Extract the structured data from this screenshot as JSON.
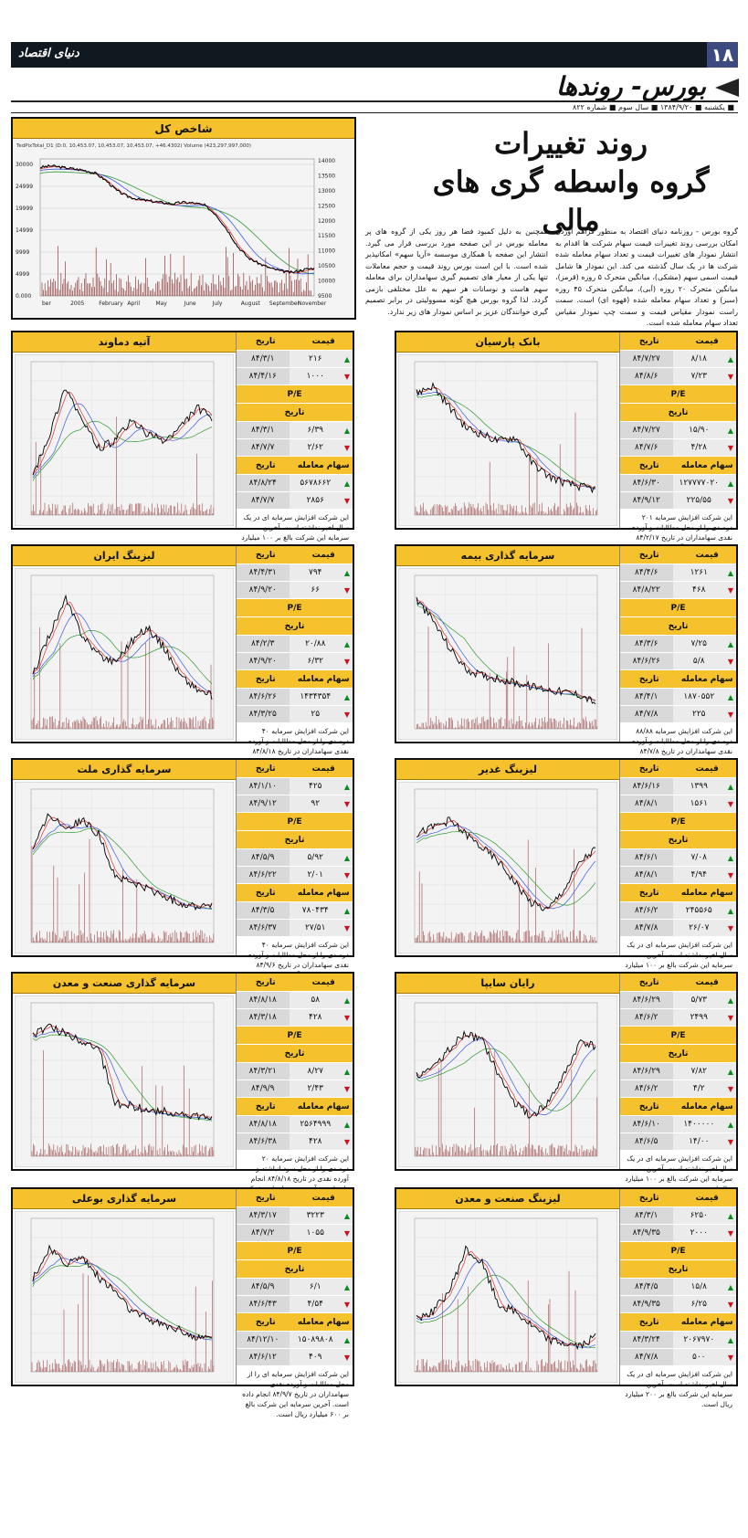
{
  "masthead": {
    "bar_text": "دنیای اقتصاد",
    "page_number": "۱۸",
    "section": "بورس- روندها",
    "dateline": "■ یکشنبه ■ ۱۳۸۴/۹/۲۰ ■ سال سوم ■ شماره ۸۲۲"
  },
  "headline": {
    "line1": "روند تغییرات",
    "line2": "گروه واسطه گری های مالی"
  },
  "intro": {
    "col1": "گروه بورس - روزنامه دنیای اقتصاد به منظور فراهم آوردن امکان بررسی روند تغییرات قیمت سهام شرکت ها اقدام به انتشار نمودار های تغییرات قیمت و تعداد سهام معامله شده شرکت ها در یک سال گذشته می کند. این نمودار ها شامل قیمت اسمی سهم (مشکی)، میانگین متحرک ۵ روزه (قرمز)، میانگین متحرک ۲۰ روزه (آبی)، میانگین متحرک ۴۵ روزه (سبز) و تعداد سهام معامله شده (قهوه ای) است. سمت راست نمودار مقیاس قیمت و سمت چپ نمودار مقیاس تعداد سهام معامله شده است.",
    "col2": "همچنین به دلیل کمبود فضا هر روز یکی از گروه های پر معامله بورس در این صفحه مورد بررسی قرار می گیرد. انتشار این صفحه با همکاری موسسه «آریا سهم» امکانپذیر شده است. با این است بورس روند قیمت و حجم معاملات تنها یکی از معیار های تصمیم گیری سهامداران برای معامله سهم هاست و نوسانات هر سهم به علل مختلفی بازمی گردد. لذا گروه بورس هیچ گونه مسوولیتی در برابر تصمیم گیری خوانندگان عزیز بر اساس نمودار های زیر ندارد."
  },
  "index_chart": {
    "title": "شاخص کل",
    "legend": "TedPixTotal_D1 (D:0, 10,453.07, 10,453.07, 10,453.07, +46.4302) Volume (423,297,997,000)",
    "x_labels": [
      "ber",
      "2005",
      "February",
      "April",
      "May",
      "June",
      "July",
      "August",
      "September",
      "November"
    ],
    "y_left": [
      "30000",
      "24999",
      "19999",
      "14999",
      "9999",
      "4999",
      "0.000"
    ],
    "y_right": [
      "14000",
      "13500",
      "13000",
      "12500",
      "12000",
      "11500",
      "11000",
      "10500",
      "10000",
      "9500"
    ]
  },
  "labels": {
    "price": "قیمت",
    "date": "تاریخ",
    "pe": "P/E",
    "volume": "سهام معامله شده"
  },
  "panels": [
    {
      "title": "بانک پارسیان",
      "rows": [
        [
          "۸/۱۸",
          "۸۴/۷/۲۷",
          "up"
        ],
        [
          "۷/۲۳",
          "۸۴/۸/۶",
          "down"
        ],
        [
          "۱۵/۹۰",
          "۸۴/۷/۲۷",
          "up"
        ],
        [
          "۴/۲۸",
          "۸۴/۷/۶",
          "down"
        ],
        [
          "۱۲۷۷۷۷۰۲۰",
          "۸۴/۶/۳۰",
          "up"
        ],
        [
          "۲۲۵/۵۵",
          "۸۴/۹/۱۲",
          "down"
        ]
      ],
      "note": "این شرکت افزایش سرمایه ۲۰۱ درصدی را از محل مطالبات و آورده نقدی سهامداران در تاریخ ۸۴/۲/۱۷ انجام داده است. آخرین سرمایه این شرکت بالغ بر ۵۰۰۰ میلیارد ریال است."
    },
    {
      "title": "آتیه دماوند",
      "rows": [
        [
          "۲۱۶",
          "۸۴/۳/۱",
          "up"
        ],
        [
          "۱۰۰۰",
          "۸۴/۴/۱۶",
          "down"
        ],
        [
          "۶/۳۹",
          "۸۴/۳/۱",
          "up"
        ],
        [
          "۲/۶۲",
          "۸۴/۷/۷",
          "down"
        ],
        [
          "۵۶۷۸۶۶۲",
          "۸۴/۸/۲۴",
          "up"
        ],
        [
          "۲۸۵۶",
          "۸۴/۷/۷",
          "down"
        ]
      ],
      "note": "این شرکت افزایش سرمایه ای در یک سال اخیر نداشته است. آخرین سرمایه این شرکت بالغ بر ۱۰۰ میلیارد ریال است."
    },
    {
      "title": "سرمایه گذاری بیمه",
      "rows": [
        [
          "۱۲۶۱",
          "۸۴/۴/۶",
          "up"
        ],
        [
          "۴۶۸",
          "۸۴/۸/۲۲",
          "down"
        ],
        [
          "۷/۲۵",
          "۸۴/۳/۶",
          "up"
        ],
        [
          "۵/۸",
          "۸۴/۶/۲۶",
          "down"
        ],
        [
          "۱۸۷۰۵۵۲",
          "۸۴/۴/۱",
          "up"
        ],
        [
          "۲۲۵",
          "۸۴/۷/۸",
          "down"
        ]
      ],
      "note": "این شرکت افزایش سرمایه ۸۸/۸۸ درصدی را از محل مطالبات و آورده نقدی سهامداران در تاریخ ۸۴/۷/۸ انجام داده است. آخرین سرمایه این شرکت بالغ بر ۱۵۰ میلیارد ریال است."
    },
    {
      "title": "لیزینگ ایران",
      "rows": [
        [
          "۷۹۴",
          "۸۴/۴/۳۱",
          "up"
        ],
        [
          "۶۶",
          "۸۴/۹/۲۰",
          "down"
        ],
        [
          "۲۰/۸۸",
          "۸۴/۲/۳",
          "up"
        ],
        [
          "۶/۳۲",
          "۸۴/۹/۲۰",
          "down"
        ],
        [
          "۱۴۳۴۳۵۴",
          "۸۴/۶/۲۶",
          "up"
        ],
        [
          "۲۵",
          "۸۴/۳/۲۵",
          "down"
        ]
      ],
      "note": "این شرکت افزایش سرمایه ۴۰ درصدی را از محل مطالبات و آورده نقدی سهامداران در تاریخ ۸۴/۸/۱۸ انجام داده است. آخرین سرمایه این شرکت بالغ بر ۵۶۰ میلیارد ریال است."
    },
    {
      "title": "لیزینگ غدیر",
      "rows": [
        [
          "۱۳۹۹",
          "۸۴/۶/۱۶",
          "up"
        ],
        [
          "۱۵۶۱",
          "۸۴/۸/۱",
          "down"
        ],
        [
          "۷/۰۸",
          "۸۴/۶/۱",
          "up"
        ],
        [
          "۴/۹۴",
          "۸۴/۸/۱",
          "down"
        ],
        [
          "۲۴۵۵۶۵",
          "۸۴/۶/۲",
          "up"
        ],
        [
          "۲۶/۰۷",
          "۸۴/۷/۸",
          "down"
        ]
      ],
      "note": "این شرکت افزایش سرمایه ای در یک سال اخیر نداشته است. آخرین سرمایه این شرکت بالغ بر ۱۰۰ میلیارد ریال است."
    },
    {
      "title": "سرمایه گذاری ملت",
      "rows": [
        [
          "۴۲۵",
          "۸۴/۱/۱۰",
          "up"
        ],
        [
          "۹۲",
          "۸۴/۹/۱۲",
          "down"
        ],
        [
          "۵/۹۲",
          "۸۴/۵/۹",
          "up"
        ],
        [
          "۲/۰۱",
          "۸۴/۶/۲۲",
          "down"
        ],
        [
          "۷۸۰۴۳۴",
          "۸۴/۳/۵",
          "up"
        ],
        [
          "۲۷/۵۱",
          "۸۴/۶/۳۷",
          "down"
        ]
      ],
      "note": "این شرکت افزایش سرمایه ۴۰ درصدی را از محل مطالبات و آورده نقدی سهامداران در تاریخ ۸۴/۹/۶ انجام داده است. آخرین سرمایه این شرکت بالغ بر ۱۰۰ میلیارد ریال است."
    },
    {
      "title": "رایان سایپا",
      "rows": [
        [
          "۵/۷۳",
          "۸۴/۶/۲۹",
          "up"
        ],
        [
          "۲۴۹۹",
          "۸۴/۶/۲",
          "down"
        ],
        [
          "۷/۸۲",
          "۸۴/۶/۲۹",
          "up"
        ],
        [
          "۴/۲",
          "۸۴/۶/۲",
          "down"
        ],
        [
          "۱۴۰۰۰۰۰",
          "۸۴/۶/۱۰",
          "up"
        ],
        [
          "۱۴/۰۰",
          "۸۴/۶/۵",
          "down"
        ]
      ],
      "note": "این شرکت افزایش سرمایه ای در یک سال اخیر نداشته است. آخرین سرمایه این شرکت بالغ بر ۱۰۰ میلیارد ریال است."
    },
    {
      "title": "سرمایه گذاری صنعت و معدن",
      "rows": [
        [
          "۵۸",
          "۸۴/۸/۱۸",
          "up"
        ],
        [
          "۴۲۸",
          "۸۴/۳/۱۸",
          "down"
        ],
        [
          "۸/۲۷",
          "۸۴/۳/۲۱",
          "up"
        ],
        [
          "۲/۴۳",
          "۸۴/۹/۹",
          "down"
        ],
        [
          "۲۵۶۴۹۹۹",
          "۸۴/۸/۱۸",
          "up"
        ],
        [
          "۴۲۸",
          "۸۴/۶/۳۸",
          "down"
        ]
      ],
      "note": "این شرکت افزایش سرمایه ۲۰ درصدی را از محل سود انباشته و آورده نقدی در تاریخ ۸۴/۸/۱۸ انجام داده است. آخرین سرمایه این شرکت بالغ بر ۵۰۰ میلیارد ریال است."
    },
    {
      "title": "لیزینگ صنعت و معدن",
      "rows": [
        [
          "۶۲۵۰",
          "۸۴/۳/۱",
          "up"
        ],
        [
          "۲۰۰۰",
          "۸۴/۹/۳۵",
          "down"
        ],
        [
          "۱۵/۸",
          "۸۴/۴/۵",
          "up"
        ],
        [
          "۶/۲۵",
          "۸۴/۹/۳۵",
          "down"
        ],
        [
          "۲۰۶۷۹۷۰",
          "۸۴/۳/۲۴",
          "up"
        ],
        [
          "۵۰۰",
          "۸۴/۷/۸",
          "down"
        ]
      ],
      "note": "این شرکت افزایش سرمایه ای در یک سال اخیر نداشته است. آخرین سرمایه این شرکت بالغ بر ۲۰۰ میلیارد ریال است."
    },
    {
      "title": "سرمایه گذاری بوعلی",
      "rows": [
        [
          "۳۲۲۳",
          "۸۴/۳/۱۷",
          "up"
        ],
        [
          "۱۰۵۵",
          "۸۴/۷/۲",
          "down"
        ],
        [
          "۶/۱",
          "۸۴/۵/۹",
          "up"
        ],
        [
          "۴/۵۴",
          "۸۴/۶/۴۳",
          "down"
        ],
        [
          "۱۵۰۸۹۸۰۸",
          "۸۴/۱۲/۱۰",
          "up"
        ],
        [
          "۴۰۹",
          "۸۴/۶/۱۲",
          "down"
        ]
      ],
      "note": "این شرکت افزایش سرمایه ای را از محل مطالبات و آورده نقدی سهامداران در تاریخ ۸۴/۹/۷ انجام داده است. آخرین سرمایه این شرکت بالغ بر ۶۰۰ میلیارد ریال است."
    }
  ],
  "chart_data": [
    {
      "type": "line",
      "name_ref": "index_chart",
      "series": [
        {
          "values": [
            13900,
            13950,
            13900,
            13850,
            13800,
            13700,
            13450,
            13100,
            12900,
            12800,
            12750,
            12700,
            12650,
            12700,
            12680,
            12600,
            12300,
            11800,
            11200,
            10800,
            10600,
            10450,
            10350,
            10300,
            10400,
            10453
          ]
        }
      ],
      "ylim": [
        9500,
        14000
      ]
    }
  ],
  "colors": {
    "accent": "#f5c22e",
    "up": "#0b8a1e",
    "down": "#c8141c",
    "page_badge": "#3c4a80"
  }
}
